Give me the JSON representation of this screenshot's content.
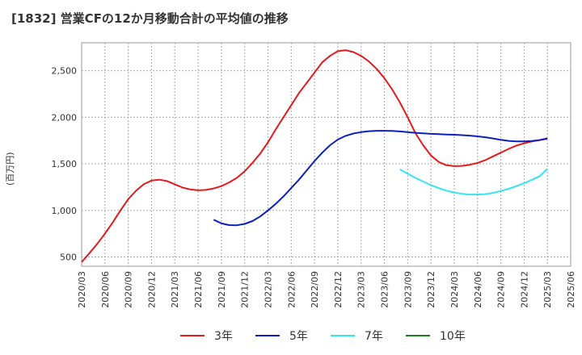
{
  "chart_data": {
    "type": "line",
    "title": "[1832]  営業CFの12か月移動合計の平均値の推移",
    "ylabel": "(百万円)",
    "ylim": [
      400,
      2800
    ],
    "yticks": [
      500,
      1000,
      1500,
      2000,
      2500
    ],
    "ytick_labels": [
      "500",
      "1,000",
      "1,500",
      "2,000",
      "2,500"
    ],
    "x_start": "2020-03",
    "x_end": "2025-06",
    "xtick_labels": [
      "2020/03",
      "2020/06",
      "2020/09",
      "2020/12",
      "2021/03",
      "2021/06",
      "2021/09",
      "2021/12",
      "2022/03",
      "2022/06",
      "2022/09",
      "2022/12",
      "2023/03",
      "2023/06",
      "2023/09",
      "2023/12",
      "2024/03",
      "2024/06",
      "2024/09",
      "2024/12",
      "2025/03",
      "2025/06"
    ],
    "grid": true,
    "legend_position": "bottom",
    "series": [
      {
        "name": "3年",
        "color": "#e41a1c",
        "x": [
          "2020/03",
          "2020/04",
          "2020/05",
          "2020/06",
          "2020/07",
          "2020/08",
          "2020/09",
          "2020/10",
          "2020/11",
          "2020/12",
          "2021/01",
          "2021/02",
          "2021/03",
          "2021/04",
          "2021/05",
          "2021/06",
          "2021/07",
          "2021/08",
          "2021/09",
          "2021/10",
          "2021/11",
          "2021/12",
          "2022/01",
          "2022/02",
          "2022/03",
          "2022/04",
          "2022/05",
          "2022/06",
          "2022/07",
          "2022/08",
          "2022/09",
          "2022/10",
          "2022/11",
          "2022/12",
          "2023/01",
          "2023/02",
          "2023/03",
          "2023/04",
          "2023/05",
          "2023/06",
          "2023/07",
          "2023/08",
          "2023/09",
          "2023/10",
          "2023/11",
          "2023/12",
          "2024/01",
          "2024/02",
          "2024/03",
          "2024/04",
          "2024/05",
          "2024/06",
          "2024/07",
          "2024/08",
          "2024/09",
          "2024/10",
          "2024/11",
          "2024/12",
          "2025/01",
          "2025/02",
          "2025/03"
        ],
        "values": [
          445,
          540,
          640,
          750,
          870,
          1000,
          1120,
          1210,
          1280,
          1320,
          1330,
          1315,
          1280,
          1245,
          1225,
          1215,
          1220,
          1235,
          1260,
          1300,
          1350,
          1420,
          1510,
          1610,
          1730,
          1870,
          2000,
          2130,
          2260,
          2370,
          2480,
          2590,
          2660,
          2710,
          2720,
          2700,
          2660,
          2600,
          2520,
          2420,
          2300,
          2160,
          2000,
          1830,
          1700,
          1590,
          1520,
          1485,
          1475,
          1478,
          1490,
          1510,
          1540,
          1580,
          1620,
          1660,
          1695,
          1720,
          1740,
          1755,
          1775
        ]
      },
      {
        "name": "5年",
        "color": "#0d1fc0",
        "x": [
          "2021/08",
          "2021/09",
          "2021/10",
          "2021/11",
          "2021/12",
          "2022/01",
          "2022/02",
          "2022/03",
          "2022/04",
          "2022/05",
          "2022/06",
          "2022/07",
          "2022/08",
          "2022/09",
          "2022/10",
          "2022/11",
          "2022/12",
          "2023/01",
          "2023/02",
          "2023/03",
          "2023/04",
          "2023/05",
          "2023/06",
          "2023/07",
          "2023/08",
          "2023/09",
          "2023/10",
          "2023/11",
          "2023/12",
          "2024/01",
          "2024/02",
          "2024/03",
          "2024/04",
          "2024/05",
          "2024/06",
          "2024/07",
          "2024/08",
          "2024/09",
          "2024/10",
          "2024/11",
          "2024/12",
          "2025/01",
          "2025/02",
          "2025/03"
        ],
        "values": [
          900,
          860,
          842,
          840,
          855,
          885,
          935,
          1000,
          1070,
          1150,
          1240,
          1330,
          1430,
          1530,
          1620,
          1700,
          1760,
          1800,
          1825,
          1840,
          1850,
          1855,
          1855,
          1853,
          1848,
          1840,
          1833,
          1827,
          1822,
          1818,
          1815,
          1812,
          1808,
          1803,
          1795,
          1785,
          1772,
          1758,
          1746,
          1740,
          1740,
          1745,
          1755,
          1770
        ]
      },
      {
        "name": "7年",
        "color": "#33e5f0",
        "x": [
          "2023/08",
          "2023/09",
          "2023/10",
          "2023/11",
          "2023/12",
          "2024/01",
          "2024/02",
          "2024/03",
          "2024/04",
          "2024/05",
          "2024/06",
          "2024/07",
          "2024/08",
          "2024/09",
          "2024/10",
          "2024/11",
          "2024/12",
          "2025/01",
          "2025/02",
          "2025/03"
        ],
        "values": [
          1440,
          1395,
          1350,
          1310,
          1272,
          1240,
          1212,
          1192,
          1178,
          1170,
          1170,
          1175,
          1188,
          1208,
          1232,
          1260,
          1292,
          1328,
          1368,
          1445
        ]
      },
      {
        "name": "10年",
        "color": "#1b7f1b",
        "x": [],
        "values": []
      }
    ]
  }
}
